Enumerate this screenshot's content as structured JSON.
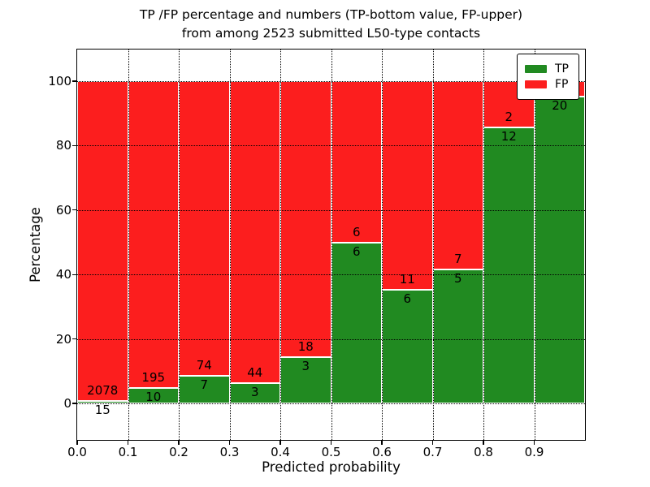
{
  "figure": {
    "title_line1": "TP /FP percentage and numbers (TP-bottom value, FP-upper)",
    "title_line2": "from among 2523 submitted L50-type contacts",
    "xlabel": "Predicted probability",
    "ylabel": "Percentage"
  },
  "chart_data": {
    "type": "bar",
    "stacked": true,
    "normalization": "each bar scaled to 100% of its bin total; annotations show raw counts (TP below boundary, FP above)",
    "title": "TP /FP percentage and numbers (TP-bottom value, FP-upper) from among 2523 submitted L50-type contacts",
    "xlabel": "Predicted probability",
    "ylabel": "Percentage",
    "total_contacts": 2523,
    "x_bin_width": 0.1,
    "xlim": [
      0.0,
      1.0
    ],
    "ylim": [
      -11.3,
      109.9
    ],
    "grid": true,
    "x_tick_labels": [
      "0.0",
      "0.1",
      "0.2",
      "0.3",
      "0.4",
      "0.5",
      "0.6",
      "0.7",
      "0.8",
      "0.9"
    ],
    "y_ticks": [
      0,
      20,
      40,
      60,
      80,
      100
    ],
    "colors": {
      "tp": "#218a21",
      "fp": "#fc1e1e",
      "bar_edge": "#ffffff"
    },
    "legend": {
      "position": "upper-right",
      "entries": [
        {
          "label": "TP",
          "color": "#218a21"
        },
        {
          "label": "FP",
          "color": "#fc1e1e"
        }
      ]
    },
    "bars": [
      {
        "bin_start": 0.0,
        "tp": 15,
        "fp": 2078,
        "tp_pct": 0.72,
        "fp_label_visible": true
      },
      {
        "bin_start": 0.1,
        "tp": 10,
        "fp": 195,
        "tp_pct": 4.88,
        "fp_label_visible": true
      },
      {
        "bin_start": 0.2,
        "tp": 7,
        "fp": 74,
        "tp_pct": 8.64,
        "fp_label_visible": true
      },
      {
        "bin_start": 0.3,
        "tp": 3,
        "fp": 44,
        "tp_pct": 6.38,
        "fp_label_visible": true
      },
      {
        "bin_start": 0.4,
        "tp": 3,
        "fp": 18,
        "tp_pct": 14.29,
        "fp_label_visible": true
      },
      {
        "bin_start": 0.5,
        "tp": 6,
        "fp": 6,
        "tp_pct": 50.0,
        "fp_label_visible": true
      },
      {
        "bin_start": 0.6,
        "tp": 6,
        "fp": 11,
        "tp_pct": 35.29,
        "fp_label_visible": true
      },
      {
        "bin_start": 0.7,
        "tp": 5,
        "fp": 7,
        "tp_pct": 41.67,
        "fp_label_visible": true
      },
      {
        "bin_start": 0.8,
        "tp": 12,
        "fp": 2,
        "tp_pct": 85.71,
        "fp_label_visible": true
      },
      {
        "bin_start": 0.9,
        "tp": 20,
        "fp": 1,
        "tp_pct": 95.24,
        "fp_label_visible": false
      }
    ]
  }
}
